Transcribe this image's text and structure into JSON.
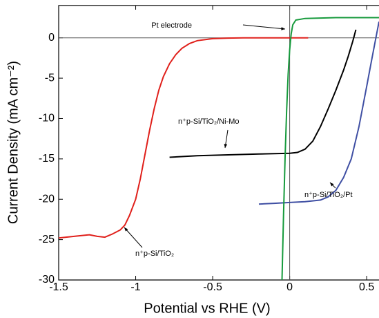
{
  "chart_data": {
    "type": "line",
    "xlabel": "Potential vs RHE (V)",
    "ylabel": "Current Density (mA cm⁻²)",
    "xlim": [
      -1.5,
      0.58
    ],
    "ylim": [
      -30,
      4
    ],
    "xticks": [
      -1.5,
      -1,
      -0.5,
      0,
      0.5
    ],
    "yticks": [
      -30,
      -25,
      -20,
      -15,
      -10,
      -5,
      0
    ],
    "grid": false,
    "reference_lines": {
      "x": 0,
      "y": 0
    },
    "series": [
      {
        "name": "n⁺p-Si/TiO₂",
        "color": "#e0201b",
        "x": [
          -1.5,
          -1.4,
          -1.3,
          -1.25,
          -1.2,
          -1.15,
          -1.1,
          -1.07,
          -1.04,
          -1.0,
          -0.97,
          -0.94,
          -0.91,
          -0.88,
          -0.85,
          -0.82,
          -0.78,
          -0.74,
          -0.7,
          -0.65,
          -0.6,
          -0.5,
          -0.4,
          -0.3,
          -0.2,
          0,
          0.12
        ],
        "values": [
          -24.8,
          -24.6,
          -24.4,
          -24.6,
          -24.7,
          -24.3,
          -23.8,
          -23.2,
          -22,
          -20,
          -17.5,
          -14.5,
          -11.5,
          -8.8,
          -6.5,
          -4.8,
          -3.2,
          -2.1,
          -1.3,
          -0.7,
          -0.35,
          -0.1,
          -0.03,
          0,
          0,
          0,
          0
        ]
      },
      {
        "name": "n⁺p-Si/TiO₂/Ni-Mo",
        "color": "#000000",
        "x": [
          -0.78,
          -0.6,
          -0.4,
          -0.2,
          0,
          0.05,
          0.1,
          0.15,
          0.2,
          0.25,
          0.3,
          0.35,
          0.38,
          0.41,
          0.43
        ],
        "values": [
          -14.8,
          -14.6,
          -14.5,
          -14.4,
          -14.3,
          -14.2,
          -13.8,
          -12.8,
          -11,
          -8.8,
          -6.5,
          -4,
          -2.3,
          -0.4,
          1
        ]
      },
      {
        "name": "n⁺p-Si/TiO₂/Pt",
        "color": "#3f4fa3",
        "x": [
          -0.2,
          -0.1,
          0,
          0.1,
          0.2,
          0.25,
          0.3,
          0.35,
          0.4,
          0.45,
          0.5,
          0.53,
          0.56,
          0.58
        ],
        "values": [
          -20.6,
          -20.5,
          -20.4,
          -20.3,
          -20.1,
          -19.7,
          -18.9,
          -17.3,
          -15,
          -11,
          -6,
          -3,
          0,
          2
        ]
      },
      {
        "name": "Pt electrode",
        "color": "#169a3c",
        "x": [
          -0.05,
          -0.04,
          -0.03,
          -0.02,
          -0.01,
          0,
          0.01,
          0.02,
          0.04,
          0.1,
          0.3,
          0.58
        ],
        "values": [
          -30,
          -22,
          -15,
          -9,
          -4.5,
          -1.5,
          0.5,
          1.6,
          2.2,
          2.4,
          2.5,
          2.5
        ]
      }
    ]
  }
}
